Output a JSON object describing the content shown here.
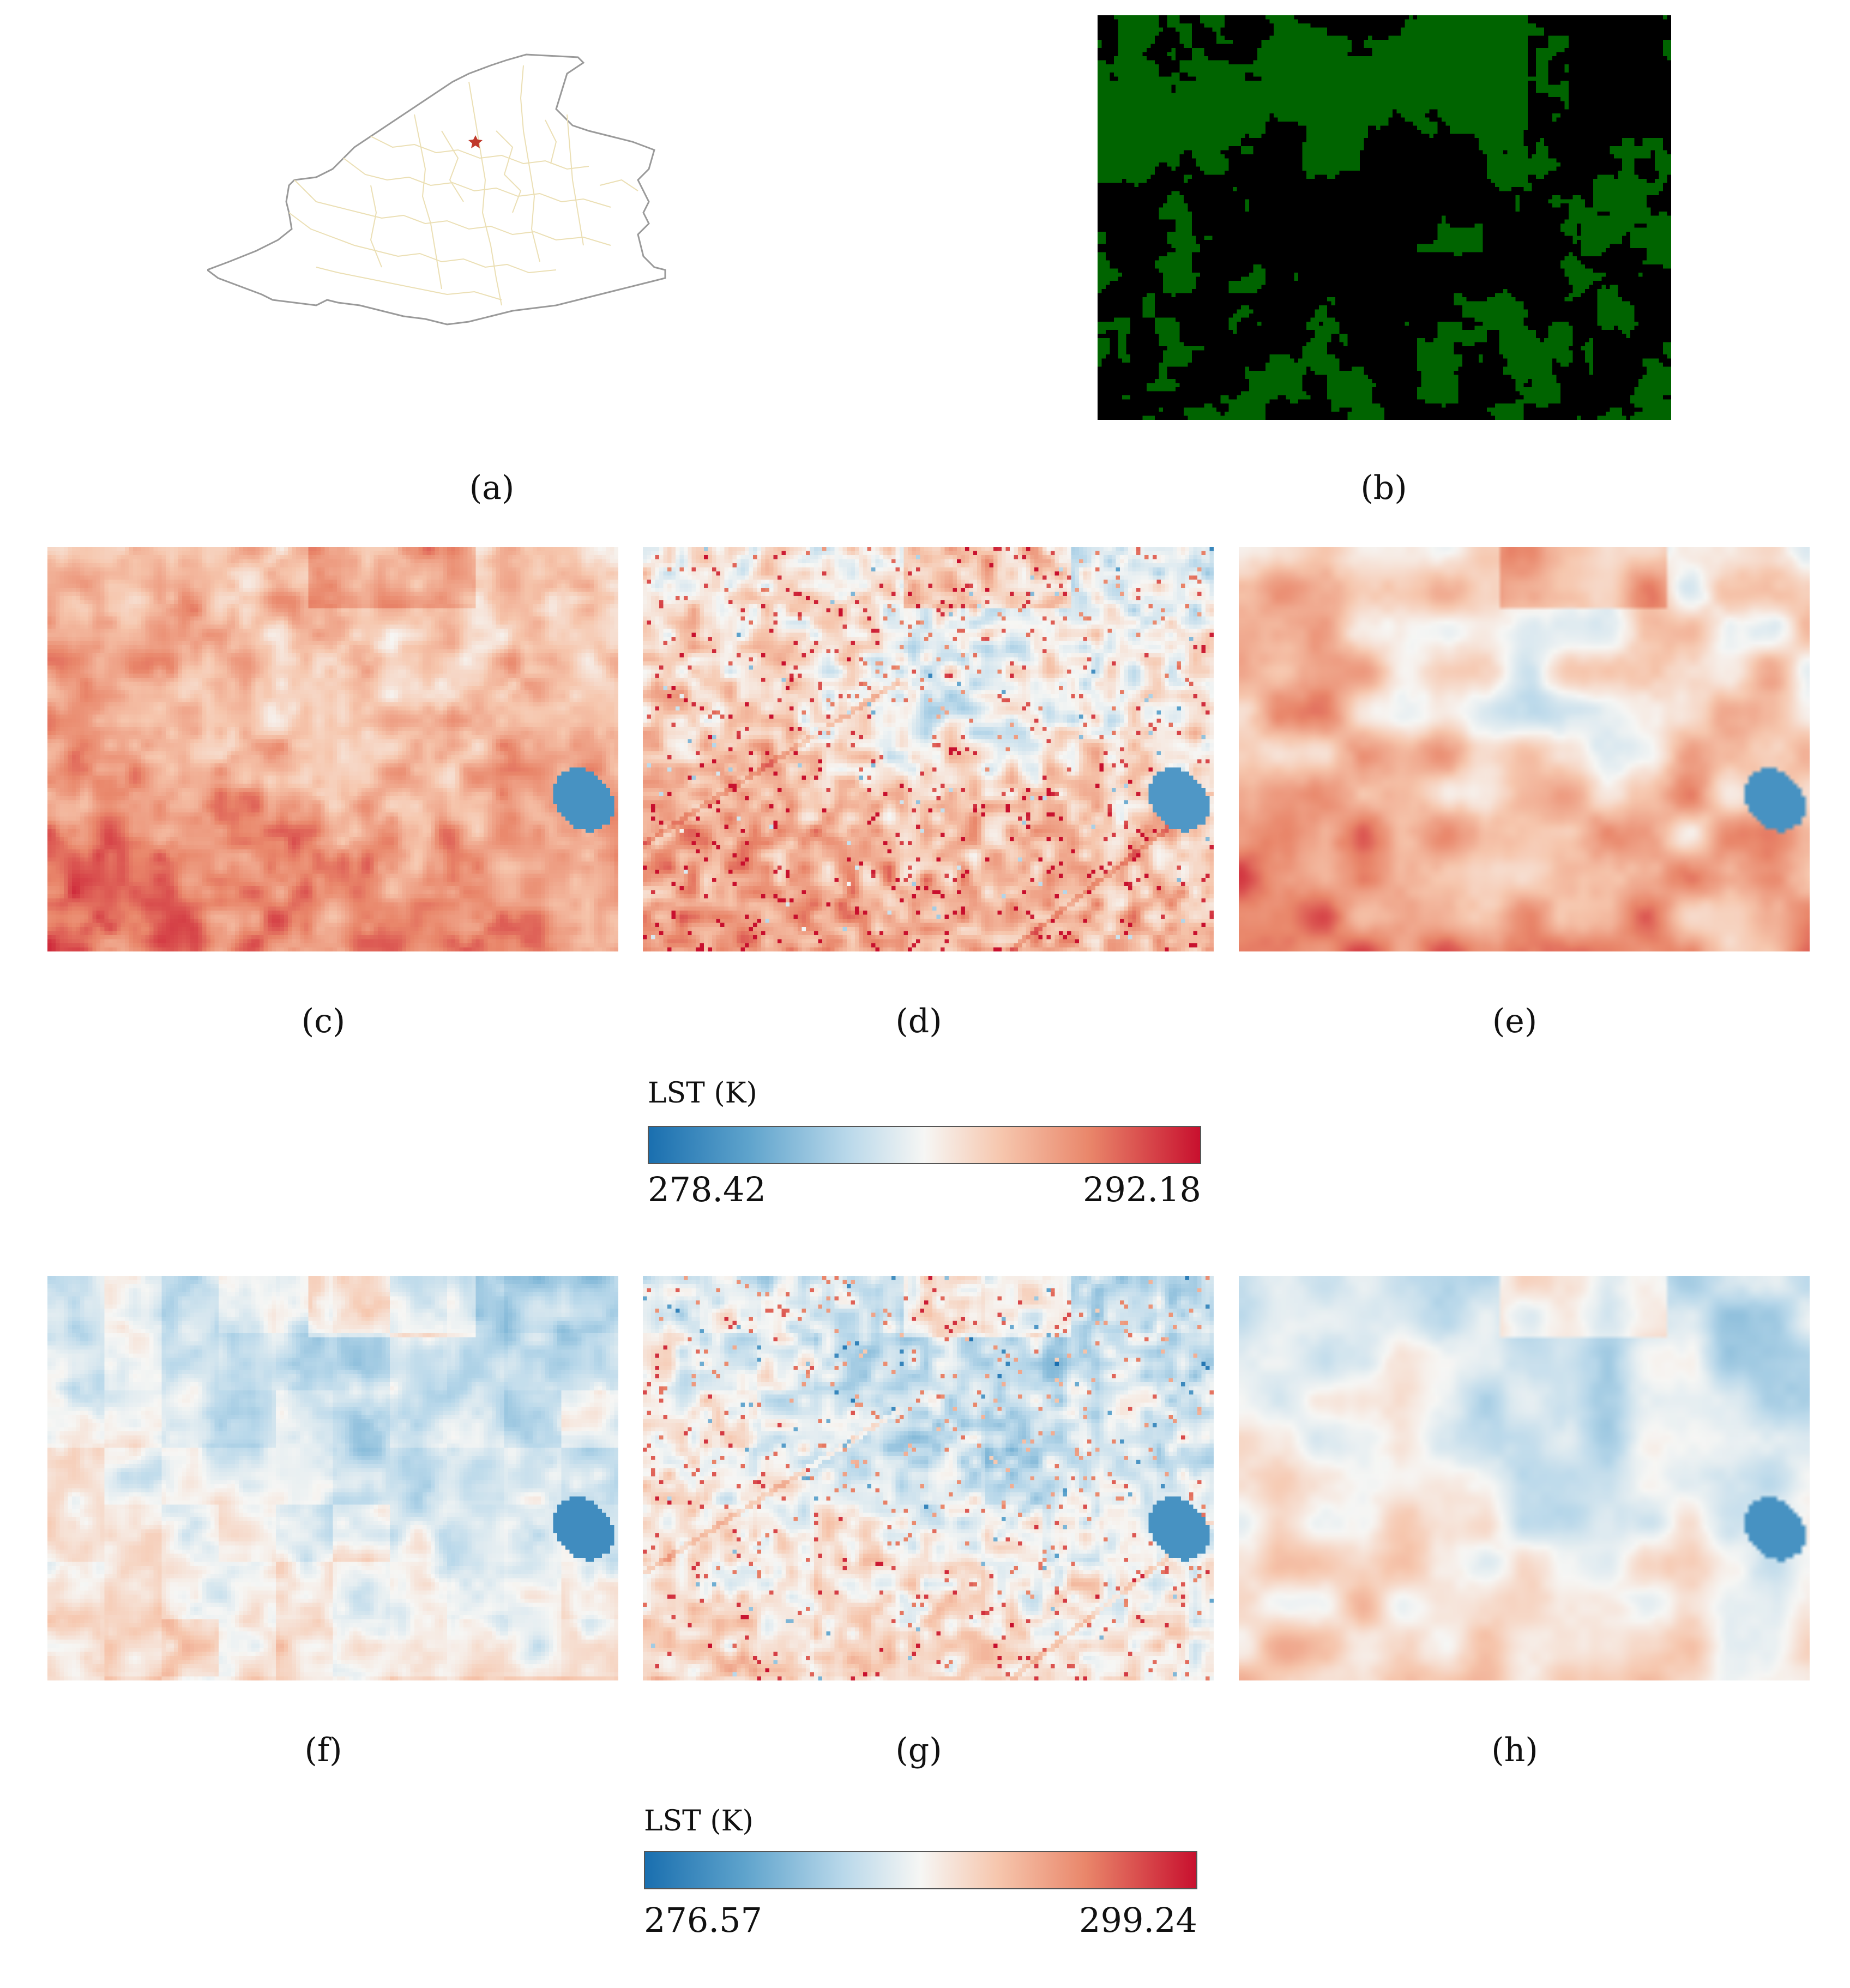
{
  "panels": [
    {
      "id": "a",
      "caption": "(a)",
      "kind": "region-map"
    },
    {
      "id": "b",
      "caption": "(b)",
      "kind": "vegetation-mask",
      "colors": {
        "vegetation": "#006400",
        "background": "#000000"
      }
    },
    {
      "id": "c",
      "caption": "(c)",
      "kind": "lst",
      "style": "warm-blocky"
    },
    {
      "id": "d",
      "caption": "(d)",
      "kind": "lst",
      "style": "fine-detail"
    },
    {
      "id": "e",
      "caption": "(e)",
      "kind": "lst",
      "style": "smooth"
    },
    {
      "id": "f",
      "caption": "(f)",
      "kind": "lst",
      "style": "cool-blocky"
    },
    {
      "id": "g",
      "caption": "(g)",
      "kind": "lst",
      "style": "cool-fine"
    },
    {
      "id": "h",
      "caption": "(h)",
      "kind": "lst",
      "style": "cool-smooth"
    }
  ],
  "colorbars": [
    {
      "title": "LST (K)",
      "min": "278.42",
      "max": "292.18"
    },
    {
      "title": "LST (K)",
      "min": "276.57",
      "max": "299.24"
    }
  ],
  "colors": {
    "cold": "#1a6faf",
    "neutral": "#f6f6f4",
    "hot": "#c8102e",
    "map_outline": "#9a9a9a",
    "map_borders": "#e8dcb0",
    "map_marker": "#c0392b"
  }
}
